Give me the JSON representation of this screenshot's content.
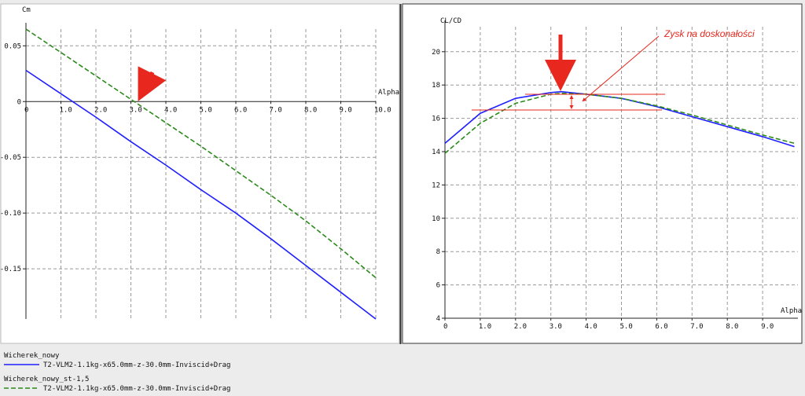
{
  "chart_data": [
    {
      "type": "line",
      "y_label": "Cm",
      "x_label": "Alpha",
      "x": [
        0,
        1,
        2,
        3,
        4,
        5,
        6,
        7,
        8,
        9,
        10
      ],
      "series": [
        {
          "color": "#1f1fff",
          "dash": "solid",
          "values": [
            0.028,
            0.007,
            -0.014,
            -0.036,
            -0.057,
            -0.079,
            -0.1,
            -0.123,
            -0.147,
            -0.171,
            -0.195
          ]
        },
        {
          "color": "#2a8a1a",
          "dash": "dashed",
          "values": [
            0.065,
            0.044,
            0.023,
            0.002,
            -0.019,
            -0.04,
            -0.062,
            -0.084,
            -0.107,
            -0.132,
            -0.158
          ]
        }
      ],
      "xlim": [
        0,
        10
      ],
      "ylim": [
        -0.195,
        0.065
      ],
      "xticks": [
        0,
        {
          "value": 1,
          "label": "1.0"
        },
        {
          "value": 2,
          "label": "2.0"
        },
        {
          "value": 3,
          "label": "3.0"
        },
        {
          "value": 4,
          "label": "4.0"
        },
        {
          "value": 5,
          "label": "5.0"
        },
        {
          "value": 6,
          "label": "6.0"
        },
        {
          "value": 7,
          "label": "7.0"
        },
        {
          "value": 8,
          "label": "8.0"
        },
        {
          "value": 9,
          "label": "9.0"
        },
        {
          "value": 10,
          "label": "10.0"
        }
      ],
      "yticks": [
        -0.15,
        {
          "value": -0.1,
          "label": "-0.10"
        },
        -0.05,
        0,
        0.05
      ],
      "grid": true
    },
    {
      "type": "line",
      "y_label": "CL/CD",
      "x_label": "Alpha",
      "annotation": "Zysk na doskonałości",
      "x": [
        0,
        1,
        2,
        3,
        3.3,
        4,
        5,
        6,
        7,
        8,
        9,
        9.9
      ],
      "series": [
        {
          "color": "#1f1fff",
          "dash": "solid",
          "values": [
            14.5,
            16.3,
            17.2,
            17.55,
            17.6,
            17.45,
            17.2,
            16.7,
            16.1,
            15.5,
            14.9,
            14.3
          ]
        },
        {
          "color": "#2a8a1a",
          "dash": "dashed",
          "values": [
            13.9,
            15.7,
            16.9,
            17.45,
            17.5,
            17.45,
            17.2,
            16.75,
            16.2,
            15.6,
            15.0,
            14.5
          ]
        }
      ],
      "xlim": [
        0,
        10
      ],
      "ylim": [
        4,
        21.5
      ],
      "xticks": [
        0,
        {
          "value": 1,
          "label": "1.0"
        },
        {
          "value": 2,
          "label": "2.0"
        },
        {
          "value": 3,
          "label": "3.0"
        },
        {
          "value": 4,
          "label": "4.0"
        },
        {
          "value": 5,
          "label": "5.0"
        },
        {
          "value": 6,
          "label": "6.0"
        },
        {
          "value": 7,
          "label": "7.0"
        },
        {
          "value": 8,
          "label": "8.0"
        },
        {
          "value": 9,
          "label": "9.0"
        }
      ],
      "yticks": [
        4,
        6,
        8,
        10,
        12,
        14,
        16,
        18,
        20
      ],
      "grid": true
    }
  ],
  "legend": [
    {
      "title": "Wicherek_nowy",
      "label": "T2-VLM2-1.1kg-x65.0mm-z-30.0mm-Inviscid+Drag",
      "color": "#1f1fff",
      "dash": "solid"
    },
    {
      "title": "Wicherek_nowy_st-1,5",
      "label": "T2-VLM2-1.1kg-x65.0mm-z-30.0mm-Inviscid+Drag",
      "color": "#2a8a1a",
      "dash": "dashed"
    }
  ]
}
